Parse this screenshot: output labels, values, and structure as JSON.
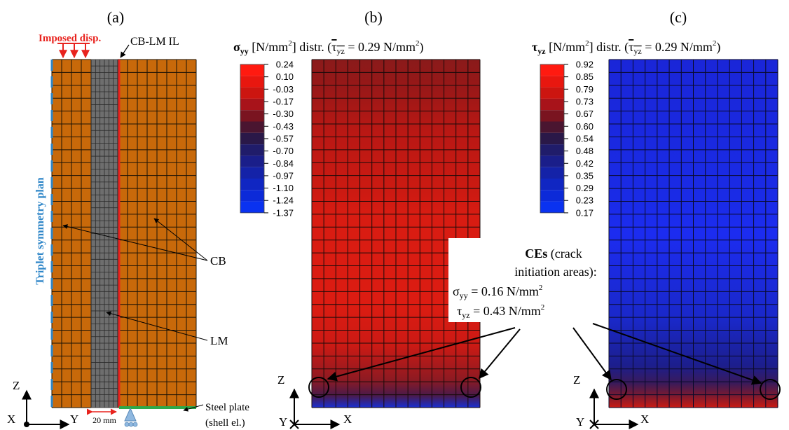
{
  "panels": {
    "a": {
      "label": "(a)",
      "imposed": "Imposed disp.",
      "interface": "CB-LM IL",
      "symmetry": "Triplet symmetry plan",
      "cb": "CB",
      "lm": "LM",
      "width_note": "20 mm",
      "steel_line1": "Steel plate",
      "steel_line2": "(shell el.)",
      "axis_z": "Z",
      "axis_y": "Y",
      "axis_x": "X",
      "colors": {
        "cb": "#c8690a",
        "lm": "#6e6e6e",
        "interface": "#e8231e",
        "symmetry": "#2e86c8",
        "steel": "#2ea84a"
      }
    },
    "b": {
      "label": "(b)",
      "title_sym": "σ",
      "title_sub": "yy",
      "title_rest": " [N/mm",
      "title_sup": "2",
      "title_rest2": "] distr. (",
      "tau_sym": "τ",
      "tau_sub": "yz",
      "title_val": " = 0.29 N/mm",
      "title_sup2": "2",
      "title_end": ")",
      "legend_values": [
        "0.24",
        "0.10",
        "-0.03",
        "-0.17",
        "-0.30",
        "-0.43",
        "-0.57",
        "-0.70",
        "-0.84",
        "-0.97",
        "-1.10",
        "-1.24",
        "-1.37"
      ],
      "axis_z": "Z",
      "axis_y": "Y",
      "axis_x": "X"
    },
    "c": {
      "label": "(c)",
      "title_sym": "τ",
      "title_sub": "yz",
      "title_rest": " [N/mm",
      "title_sup": "2",
      "title_rest2": "] distr. (",
      "tau_sym": "τ",
      "tau_sub": "yz",
      "title_val": " = 0.29 N/mm",
      "title_sup2": "2",
      "title_end": ")",
      "legend_values": [
        "0.92",
        "0.85",
        "0.79",
        "0.73",
        "0.67",
        "0.60",
        "0.54",
        "0.48",
        "0.42",
        "0.35",
        "0.29",
        "0.23",
        "0.17"
      ],
      "axis_z": "Z",
      "axis_y": "Y",
      "axis_x": "X"
    }
  },
  "annotation": {
    "line1_bold": "CEs",
    "line1_rest": " (crack",
    "line2": "initiation areas):",
    "sigma_sym": "σ",
    "sigma_sub": "yy",
    "sigma_val": " = 0.16 N/mm",
    "sigma_sup": "2",
    "tau_sym": "τ",
    "tau_sub": "yz",
    "tau_val": " = 0.43 N/mm",
    "tau_sup": "2"
  },
  "legend_colors_b": [
    "#ff1a10",
    "#e8170f",
    "#cc1510",
    "#a8131a",
    "#7a1420",
    "#4a1530",
    "#2a1848",
    "#201c6a",
    "#1a1e8a",
    "#1422a8",
    "#1026c2",
    "#0c2ad8",
    "#0a32f0"
  ],
  "legend_colors_c": [
    "#ff1a10",
    "#e8170f",
    "#cc1510",
    "#a8131a",
    "#7a1420",
    "#4a1530",
    "#2a1848",
    "#201c6a",
    "#1a1e8a",
    "#1422a8",
    "#1026c2",
    "#0c2ad8",
    "#0a32f0"
  ]
}
